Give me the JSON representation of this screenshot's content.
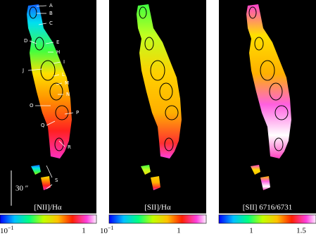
{
  "panels": [
    {
      "label": "[NII]/Hα",
      "colorbar_ticks": [
        {
          "base": "10",
          "exponent": "−1"
        },
        {
          "text": "1"
        }
      ]
    },
    {
      "label": "[SII]/Hα",
      "colorbar_ticks": [
        {
          "base": "10",
          "exponent": "−1"
        },
        {
          "text": "1"
        }
      ]
    },
    {
      "label": "[SII] 6716/6731",
      "colorbar_ticks": [
        {
          "text": "1"
        },
        {
          "text": "1.5"
        }
      ]
    }
  ],
  "regions": [
    "A",
    "B",
    "C",
    "D",
    "E",
    "H",
    "I",
    "J",
    "L",
    "M",
    "N",
    "O",
    "P",
    "Q",
    "R",
    "S"
  ],
  "scale_bar": "30 ″"
}
